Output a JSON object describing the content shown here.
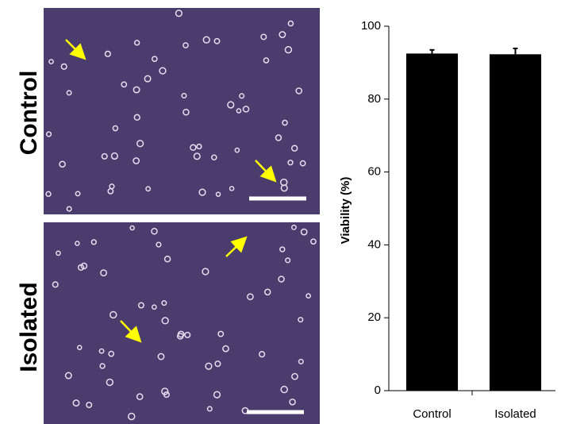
{
  "panels": [
    {
      "label": "Control"
    },
    {
      "label": "Isolated"
    }
  ],
  "chart_data": {
    "type": "bar",
    "y_label": "Viability (%)",
    "categories": [
      "Control",
      "Isolated"
    ],
    "values": [
      92.5,
      92.3
    ],
    "errors": [
      1.0,
      1.6
    ],
    "color": "#000000",
    "ylim": [
      0,
      100
    ],
    "yticks": [
      0,
      20,
      40,
      60,
      80,
      100
    ]
  }
}
